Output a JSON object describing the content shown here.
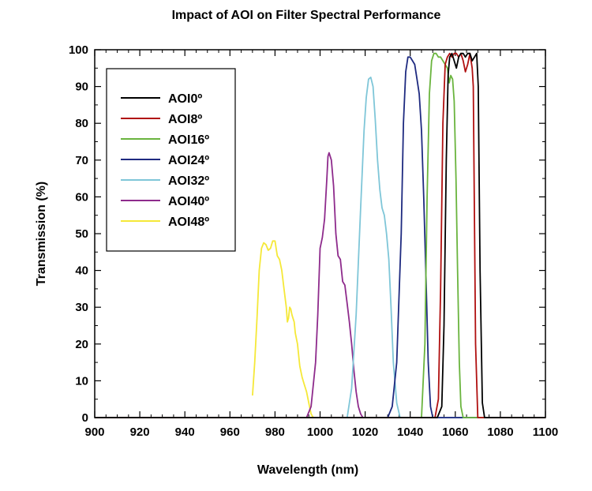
{
  "chart_data": {
    "type": "line",
    "title": "Impact of AOI on Filter Spectral Performance",
    "xlabel": "Wavelength (nm)",
    "ylabel": "Transmission (%)",
    "xlim": [
      900,
      1100
    ],
    "ylim": [
      0,
      100
    ],
    "xticks": [
      900,
      920,
      940,
      960,
      980,
      1000,
      1020,
      1040,
      1060,
      1080,
      1100
    ],
    "yticks": [
      0,
      10,
      20,
      30,
      40,
      50,
      60,
      70,
      80,
      90,
      100
    ],
    "grid": false,
    "legend_position": "top-left",
    "series": [
      {
        "name": "AOI0º",
        "color": "#000000",
        "x": [
          900,
          1052,
          1054,
          1055,
          1056,
          1056.8,
          1057.5,
          1058.5,
          1059.5,
          1060.5,
          1061.5,
          1062.5,
          1063.5,
          1064.5,
          1065.5,
          1066.5,
          1067.5,
          1068.5,
          1069.5,
          1070.2,
          1071,
          1072,
          1073,
          1100
        ],
        "y": [
          0,
          0,
          3,
          25,
          70,
          93,
          98,
          99,
          97,
          95,
          98,
          99,
          99,
          98,
          99,
          99,
          97,
          98,
          99,
          90,
          40,
          4,
          0,
          0
        ]
      },
      {
        "name": "AOI8º",
        "color": "#b01010",
        "x": [
          900,
          1051,
          1052.5,
          1053.5,
          1054.5,
          1055.5,
          1056.5,
          1057.5,
          1058.5,
          1059.5,
          1060.5,
          1061.5,
          1062.5,
          1063.5,
          1064.5,
          1065.5,
          1066.5,
          1067.5,
          1068,
          1069,
          1070,
          1100
        ],
        "y": [
          0,
          0,
          5,
          35,
          80,
          96,
          98,
          99,
          98,
          99,
          99,
          98,
          99,
          97,
          94,
          96,
          99,
          95,
          90,
          20,
          0,
          0
        ]
      },
      {
        "name": "AOI16º",
        "color": "#6ab43e",
        "x": [
          900,
          1045,
          1046.5,
          1047.5,
          1048.5,
          1049.5,
          1050.5,
          1051.5,
          1052.5,
          1053.5,
          1054.5,
          1055.5,
          1056.5,
          1057.3,
          1058,
          1058.8,
          1059.5,
          1060.3,
          1061,
          1061.8,
          1062.5,
          1063.5,
          1100
        ],
        "y": [
          0,
          0,
          20,
          60,
          88,
          97,
          99,
          99,
          98,
          98,
          97,
          96,
          95,
          91,
          93,
          92,
          86,
          65,
          40,
          15,
          3,
          0,
          0
        ]
      },
      {
        "name": "AOI24º",
        "color": "#1e2a80",
        "x": [
          900,
          1030,
          1032,
          1034,
          1036,
          1037,
          1038,
          1039,
          1040,
          1041,
          1042,
          1043,
          1044,
          1045,
          1046,
          1047,
          1048,
          1049,
          1050,
          1100
        ],
        "y": [
          0,
          0,
          3,
          15,
          50,
          80,
          94,
          98,
          98,
          97,
          96,
          92,
          88,
          78,
          60,
          38,
          15,
          3,
          0,
          0
        ]
      },
      {
        "name": "AOI32º",
        "color": "#7fc6d8",
        "x": [
          900,
          1012,
          1014,
          1016,
          1018,
          1019.5,
          1020.5,
          1021.5,
          1022.5,
          1023.5,
          1024.5,
          1025.5,
          1026.5,
          1027.5,
          1028.5,
          1029.5,
          1030.5,
          1031.5,
          1032.5,
          1034,
          1035.5,
          1100
        ],
        "y": [
          0,
          0,
          8,
          28,
          57,
          78,
          87,
          92,
          92.5,
          90,
          81,
          70,
          62,
          57,
          55,
          50,
          43,
          30,
          15,
          4,
          0,
          0
        ]
      },
      {
        "name": "AOI40º",
        "color": "#8e2b8c",
        "x": [
          900,
          994,
          996,
          998,
          999,
          1000,
          1001,
          1002,
          1003,
          1003.5,
          1004,
          1005,
          1006,
          1007,
          1008,
          1009,
          1010,
          1011,
          1012,
          1013,
          1014,
          1015,
          1016,
          1017,
          1018,
          1019,
          1100
        ],
        "y": [
          0,
          0,
          3,
          15,
          28,
          46,
          49,
          54,
          65,
          71,
          72,
          70,
          63,
          50,
          44,
          43,
          37,
          36,
          31,
          26,
          20,
          13,
          7,
          3,
          1,
          0,
          0
        ]
      },
      {
        "name": "AOI48º",
        "color": "#f5e838",
        "x": [
          970,
          971,
          972,
          973,
          974,
          975,
          976,
          977,
          978,
          979,
          980,
          981,
          982,
          983,
          984,
          985,
          985.5,
          986,
          986.5,
          987,
          987.5,
          988,
          988.5,
          989,
          990,
          991,
          992,
          993,
          994,
          995,
          996,
          997
        ],
        "y": [
          6,
          15,
          27,
          40,
          46,
          47.5,
          47,
          45.5,
          46,
          48,
          48,
          44,
          43,
          40,
          35,
          30,
          26,
          27,
          30,
          29.5,
          28,
          27,
          26,
          23,
          20,
          14,
          11,
          9,
          7,
          4,
          1,
          0
        ]
      }
    ]
  }
}
